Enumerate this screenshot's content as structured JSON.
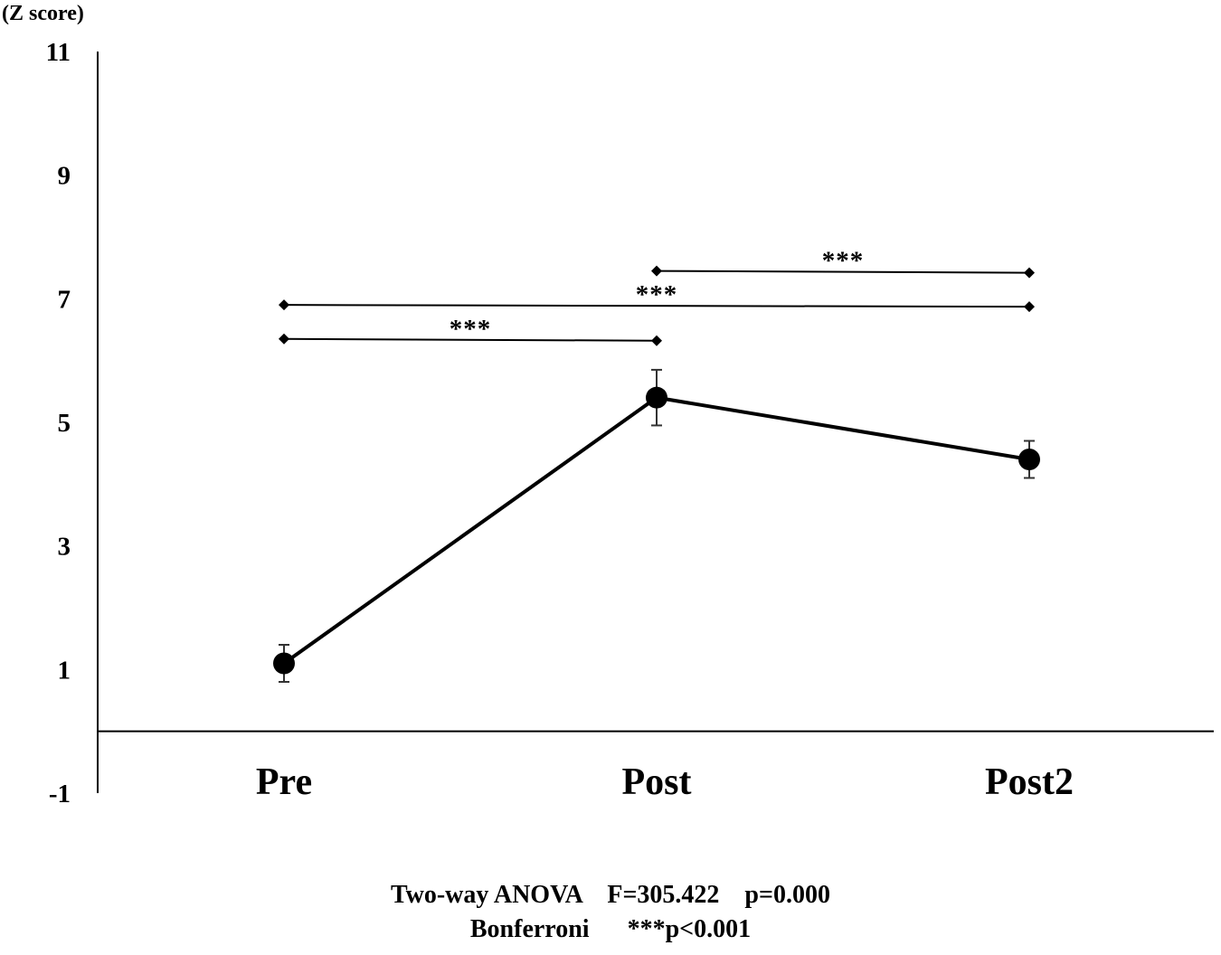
{
  "chart_data": {
    "type": "line",
    "unit_label": "(Z score)",
    "categories": [
      "Pre",
      "Post",
      "Post2"
    ],
    "series": [
      {
        "values": [
          1.1,
          5.4,
          4.4
        ],
        "error": [
          0.3,
          0.45,
          0.3
        ]
      }
    ],
    "ylim": [
      -1,
      11
    ],
    "yticks": [
      11,
      9,
      7,
      5,
      3,
      1,
      -1
    ],
    "zero_line": 0,
    "grid": false,
    "legend": "none",
    "significance_brackets": [
      {
        "from": "Post",
        "to": "Post2",
        "y": 7.45,
        "label": "***"
      },
      {
        "from": "Pre",
        "to": "Post2",
        "y": 6.9,
        "label": "***"
      },
      {
        "from": "Pre",
        "to": "Post",
        "y": 6.35,
        "label": "***"
      }
    ],
    "color": "#000000"
  },
  "footer": {
    "line1": "Two-way ANOVA    F=305.422    p=0.000",
    "line2": "Bonferroni      ***p<0.001"
  }
}
